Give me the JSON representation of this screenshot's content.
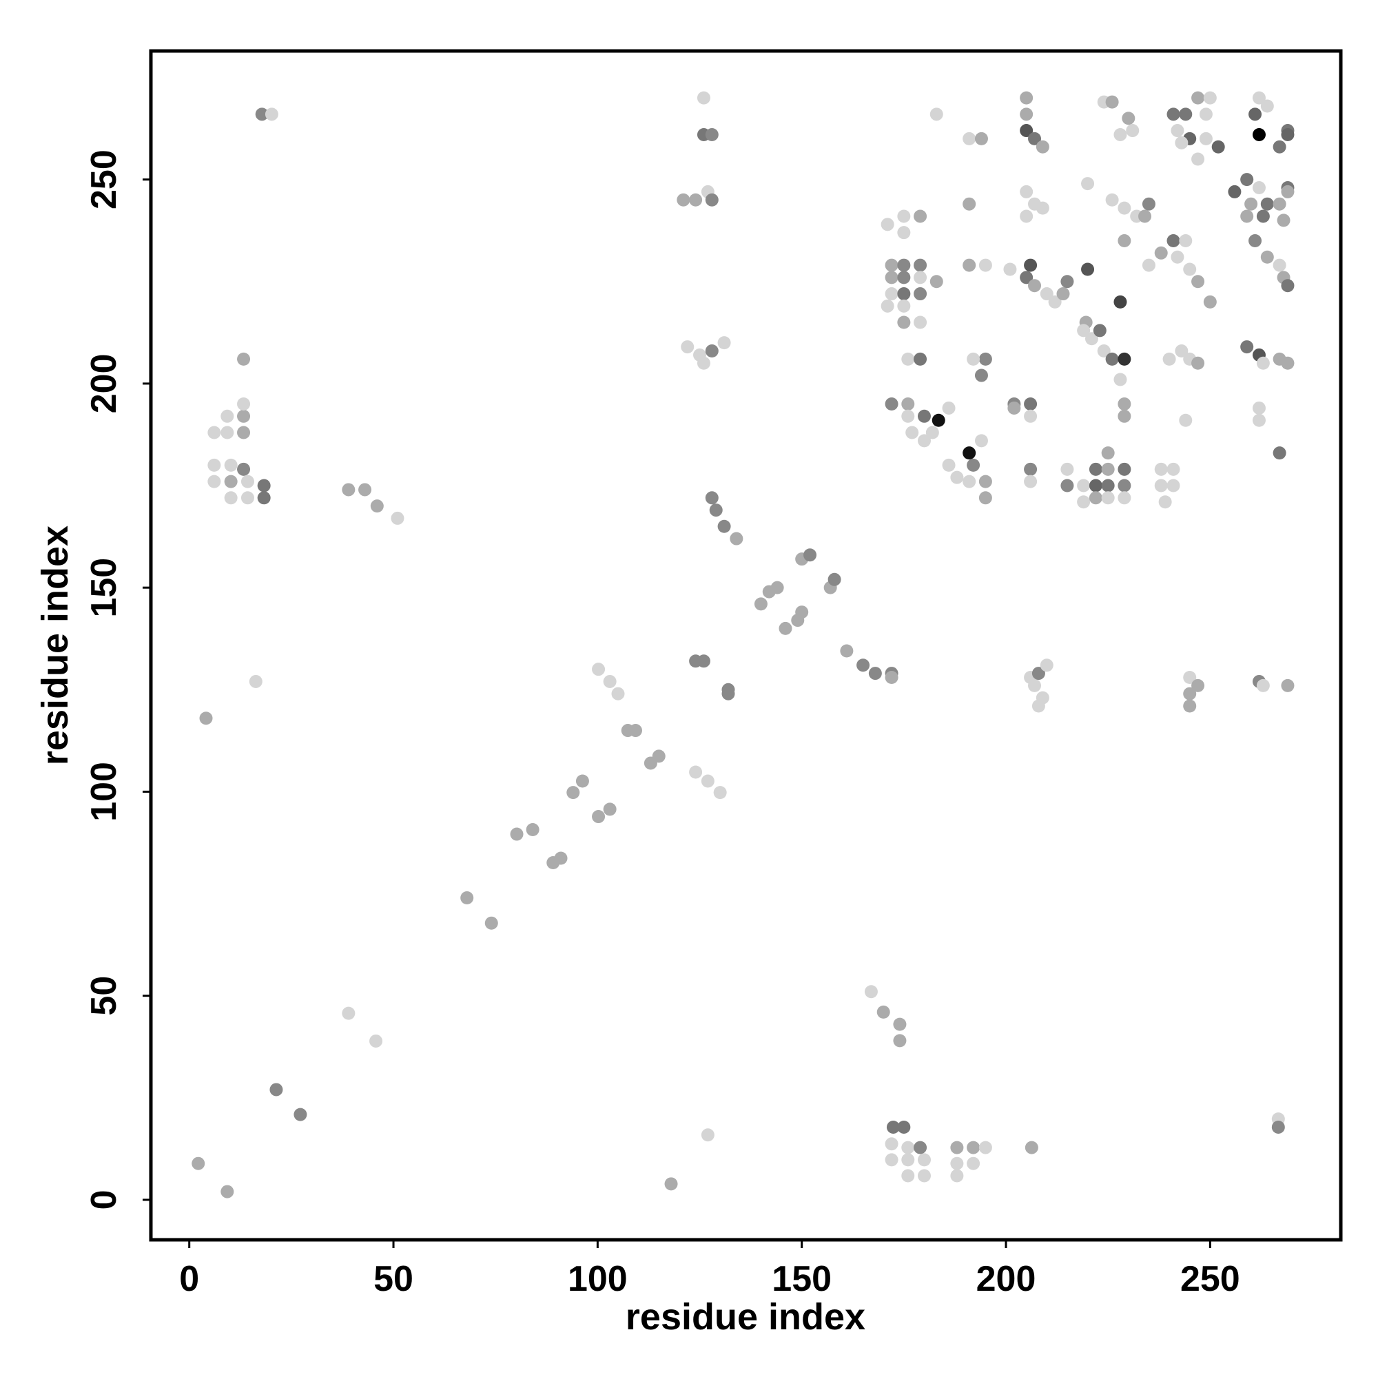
{
  "chart_data": {
    "type": "scatter",
    "xlabel": "residue index",
    "ylabel": "residue index",
    "xlim": [
      -9.4,
      282
    ],
    "ylim": [
      -9.8,
      281.5
    ],
    "xticks": [
      0,
      50,
      100,
      150,
      200,
      250
    ],
    "yticks": [
      0,
      50,
      100,
      150,
      200,
      250
    ],
    "grid": false,
    "x": [
      2.2,
      9.3,
      21.3,
      27.2,
      39,
      45.7,
      68,
      74,
      118,
      127,
      167,
      170,
      174,
      174,
      172.4,
      175,
      172,
      176,
      179,
      172,
      176,
      180,
      176,
      180,
      188,
      192,
      195,
      188,
      192,
      188,
      206.3,
      266.7,
      266.7,
      4.1,
      16.3,
      6.1,
      9.3,
      9.3,
      13.3,
      13.3,
      13.3,
      13.3,
      6.1,
      10.2,
      13.3,
      6.1,
      10.2,
      14.3,
      18.3,
      18.3,
      10.2,
      14.3,
      17.8,
      20.2,
      39,
      43,
      46,
      51,
      80.2,
      84.1,
      89.1,
      91,
      94,
      96.3,
      100.2,
      103,
      100.2,
      103,
      105,
      107.4,
      109.3,
      113,
      115,
      124,
      127,
      130,
      124,
      126,
      132,
      132,
      128,
      129,
      131,
      134,
      140,
      142,
      144,
      146,
      149,
      150,
      150,
      152,
      157,
      158,
      161,
      165,
      168,
      172,
      172,
      126,
      126,
      128,
      121,
      124,
      127,
      128,
      122,
      125,
      128,
      131,
      126,
      171,
      175,
      179,
      175,
      172,
      175,
      179,
      172,
      175,
      179,
      183,
      172,
      175,
      179,
      171,
      175,
      175,
      179,
      176,
      179,
      172,
      176,
      176,
      180,
      183.5,
      186,
      177,
      180,
      182,
      186,
      188,
      191,
      192,
      191,
      195,
      195,
      194,
      195,
      194,
      192,
      191,
      191,
      194,
      191,
      195,
      183,
      201,
      202,
      202,
      206,
      206,
      206,
      206,
      205,
      205,
      205,
      207,
      209,
      205,
      207,
      209,
      205,
      206,
      205,
      207,
      210,
      212,
      214,
      215,
      206,
      207,
      208,
      209,
      210,
      208,
      215,
      215,
      219,
      219,
      222,
      222,
      222,
      225,
      225,
      225,
      225,
      229,
      229,
      229,
      220,
      219.6,
      219,
      221,
      223,
      224,
      226,
      229,
      228,
      229,
      229,
      228,
      226,
      229,
      232,
      235,
      234,
      229,
      224,
      226,
      230,
      231,
      228,
      220,
      235,
      238,
      238,
      239,
      241,
      241,
      238,
      241,
      244,
      242,
      245,
      247,
      250,
      244,
      240,
      243,
      245,
      247,
      245,
      247,
      245,
      245,
      241,
      244,
      247,
      250,
      242,
      245,
      249,
      252,
      249,
      243,
      247,
      256,
      259,
      262,
      260,
      264,
      259,
      263,
      267,
      268,
      261,
      259,
      262,
      263,
      267,
      262,
      262,
      267,
      262,
      263,
      269,
      269,
      264,
      267,
      268,
      269,
      262,
      261,
      264,
      267,
      269,
      269,
      269,
      269,
      262
    ],
    "y": [
      8.9,
      2,
      27,
      20.9,
      45.7,
      38.9,
      74,
      67.8,
      3.9,
      15.9,
      51,
      46,
      43,
      39,
      17.8,
      17.8,
      13.7,
      12.8,
      12.8,
      9.8,
      9.8,
      9.8,
      5.9,
      5.9,
      12.8,
      12.8,
      12.8,
      8.9,
      8.9,
      5.9,
      12.8,
      19.8,
      17.8,
      118,
      127,
      188,
      188,
      192,
      192,
      188,
      195,
      206,
      180,
      180,
      179,
      176,
      176,
      176,
      175,
      172,
      172,
      172,
      266,
      266,
      174,
      174,
      170,
      167,
      89.6,
      90.7,
      82.6,
      83.7,
      99.8,
      102.6,
      93.9,
      95.7,
      130,
      127,
      124,
      115,
      115,
      107,
      108.7,
      104.8,
      102.6,
      99.8,
      132,
      132,
      125,
      124,
      172,
      169,
      165,
      162,
      146,
      149,
      150,
      140,
      142,
      144,
      157,
      158,
      150,
      152,
      134.5,
      131,
      129,
      129,
      128,
      270,
      261,
      261,
      245,
      245,
      247,
      245,
      209,
      207,
      208,
      210,
      205,
      239,
      241,
      241,
      237,
      229,
      229,
      229,
      226,
      226,
      226,
      225,
      222,
      222,
      222,
      219,
      219,
      215,
      215,
      206,
      206,
      195,
      195,
      192,
      192,
      191,
      194,
      188,
      186,
      188,
      180,
      177,
      183,
      180,
      176,
      176,
      172,
      186,
      206,
      202,
      206,
      244,
      260,
      260,
      229,
      229,
      266,
      228,
      195,
      194,
      195,
      192,
      179,
      176,
      270,
      266,
      262,
      260,
      258,
      247,
      244,
      243,
      241,
      229,
      226,
      224,
      222,
      220,
      222,
      225,
      128,
      126,
      129,
      123,
      131,
      121,
      179,
      175,
      175,
      171,
      179,
      175,
      172,
      183,
      179,
      175,
      172,
      179,
      175,
      172,
      228,
      215,
      213,
      211,
      213,
      208,
      206,
      206,
      201,
      195,
      192,
      220,
      245,
      243,
      241,
      244,
      241,
      235,
      269,
      269,
      265,
      262,
      261,
      249,
      229,
      179,
      175,
      171,
      179,
      175,
      232,
      235,
      235,
      231,
      228,
      225,
      220,
      191,
      206,
      208,
      206,
      205,
      128,
      126,
      124,
      121,
      266,
      266,
      270,
      270,
      262,
      260,
      260,
      258,
      266,
      259,
      255,
      247,
      250,
      248,
      244,
      244,
      241,
      241,
      244,
      240,
      235,
      209,
      207,
      205,
      206,
      194,
      191,
      183,
      127,
      126,
      126,
      205,
      231,
      229,
      226,
      224,
      270,
      266,
      268,
      258,
      262,
      261,
      248,
      247,
      261
    ],
    "colors": [
      "#ababab",
      "#ababab",
      "#888888",
      "#888888",
      "#d4d4d4",
      "#d4d4d4",
      "#ababab",
      "#ababab",
      "#ababab",
      "#d4d4d4",
      "#d4d4d4",
      "#ababab",
      "#ababab",
      "#ababab",
      "#777777",
      "#777777",
      "#d4d4d4",
      "#d4d4d4",
      "#888888",
      "#d4d4d4",
      "#d4d4d4",
      "#d4d4d4",
      "#d4d4d4",
      "#d4d4d4",
      "#ababab",
      "#ababab",
      "#d4d4d4",
      "#d4d4d4",
      "#d4d4d4",
      "#d4d4d4",
      "#ababab",
      "#d4d4d4",
      "#888888",
      "#ababab",
      "#d4d4d4",
      "#d4d4d4",
      "#d4d4d4",
      "#d4d4d4",
      "#ababab",
      "#ababab",
      "#d4d4d4",
      "#ababab",
      "#d4d4d4",
      "#d4d4d4",
      "#888888",
      "#d4d4d4",
      "#ababab",
      "#d4d4d4",
      "#777777",
      "#777777",
      "#d4d4d4",
      "#d4d4d4",
      "#888888",
      "#d4d4d4",
      "#ababab",
      "#ababab",
      "#ababab",
      "#d4d4d4",
      "#ababab",
      "#ababab",
      "#ababab",
      "#ababab",
      "#ababab",
      "#ababab",
      "#ababab",
      "#ababab",
      "#d4d4d4",
      "#d4d4d4",
      "#d4d4d4",
      "#ababab",
      "#ababab",
      "#ababab",
      "#ababab",
      "#d4d4d4",
      "#d4d4d4",
      "#d4d4d4",
      "#888888",
      "#888888",
      "#888888",
      "#888888",
      "#888888",
      "#888888",
      "#888888",
      "#ababab",
      "#ababab",
      "#ababab",
      "#ababab",
      "#ababab",
      "#ababab",
      "#ababab",
      "#ababab",
      "#888888",
      "#ababab",
      "#888888",
      "#ababab",
      "#888888",
      "#888888",
      "#888888",
      "#ababab",
      "#d4d4d4",
      "#777777",
      "#888888",
      "#ababab",
      "#ababab",
      "#d4d4d4",
      "#888888",
      "#d4d4d4",
      "#d4d4d4",
      "#888888",
      "#d4d4d4",
      "#d4d4d4",
      "#d4d4d4",
      "#d4d4d4",
      "#ababab",
      "#d4d4d4",
      "#ababab",
      "#888888",
      "#888888",
      "#ababab",
      "#888888",
      "#d4d4d4",
      "#ababab",
      "#d4d4d4",
      "#777777",
      "#888888",
      "#d4d4d4",
      "#d4d4d4",
      "#ababab",
      "#d4d4d4",
      "#d4d4d4",
      "#777777",
      "#888888",
      "#ababab",
      "#d4d4d4",
      "#777777",
      "#111111",
      "#d4d4d4",
      "#d4d4d4",
      "#d4d4d4",
      "#d4d4d4",
      "#d4d4d4",
      "#d4d4d4",
      "#111111",
      "#888888",
      "#d4d4d4",
      "#ababab",
      "#ababab",
      "#d4d4d4",
      "#888888",
      "#888888",
      "#d4d4d4",
      "#ababab",
      "#d4d4d4",
      "#ababab",
      "#ababab",
      "#d4d4d4",
      "#d4d4d4",
      "#d4d4d4",
      "#888888",
      "#ababab",
      "#777777",
      "#d4d4d4",
      "#888888",
      "#d4d4d4",
      "#ababab",
      "#ababab",
      "#555555",
      "#777777",
      "#ababab",
      "#d4d4d4",
      "#d4d4d4",
      "#d4d4d4",
      "#d4d4d4",
      "#555555",
      "#777777",
      "#ababab",
      "#d4d4d4",
      "#d4d4d4",
      "#ababab",
      "#888888",
      "#d4d4d4",
      "#d4d4d4",
      "#888888",
      "#d4d4d4",
      "#d4d4d4",
      "#d4d4d4",
      "#d4d4d4",
      "#888888",
      "#d4d4d4",
      "#d4d4d4",
      "#777777",
      "#666666",
      "#ababab",
      "#ababab",
      "#ababab",
      "#777777",
      "#d4d4d4",
      "#777777",
      "#888888",
      "#d4d4d4",
      "#555555",
      "#ababab",
      "#d4d4d4",
      "#d4d4d4",
      "#777777",
      "#d4d4d4",
      "#777777",
      "#333333",
      "#d4d4d4",
      "#ababab",
      "#ababab",
      "#444444",
      "#d4d4d4",
      "#d4d4d4",
      "#d4d4d4",
      "#888888",
      "#ababab",
      "#ababab",
      "#d4d4d4",
      "#ababab",
      "#ababab",
      "#d4d4d4",
      "#d4d4d4",
      "#d4d4d4",
      "#d4d4d4",
      "#d4d4d4",
      "#d4d4d4",
      "#d4d4d4",
      "#d4d4d4",
      "#d4d4d4",
      "#ababab",
      "#777777",
      "#d4d4d4",
      "#d4d4d4",
      "#d4d4d4",
      "#ababab",
      "#ababab",
      "#d4d4d4",
      "#d4d4d4",
      "#d4d4d4",
      "#d4d4d4",
      "#ababab",
      "#d4d4d4",
      "#ababab",
      "#ababab",
      "#ababab",
      "#777777",
      "#777777",
      "#ababab",
      "#d4d4d4",
      "#d4d4d4",
      "#666666",
      "#d4d4d4",
      "#666666",
      "#d4d4d4",
      "#d4d4d4",
      "#d4d4d4",
      "#666666",
      "#777777",
      "#d4d4d4",
      "#ababab",
      "#777777",
      "#ababab",
      "#777777",
      "#ababab",
      "#ababab",
      "#888888",
      "#777777",
      "#555555",
      "#d4d4d4",
      "#ababab",
      "#d4d4d4",
      "#d4d4d4",
      "#777777",
      "#888888",
      "#d4d4d4",
      "#ababab",
      "#ababab",
      "#ababab",
      "#d4d4d4",
      "#ababab",
      "#777777",
      "#d4d4d4",
      "#666666",
      "#d4d4d4",
      "#777777",
      "#777777",
      "#666666",
      "#777777",
      "#ababab"
    ]
  }
}
